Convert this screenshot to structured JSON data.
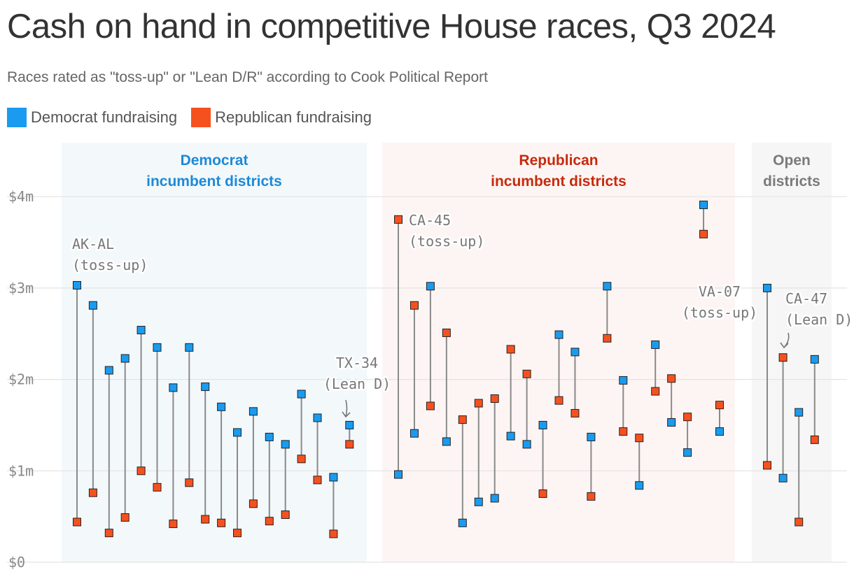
{
  "title": "Cash on hand in competitive House races, Q3 2024",
  "subtitle": "Races rated as \"toss-up\" or \"Lean D/R\" according to Cook Political Report",
  "legend": [
    {
      "label": "Democrat fundraising",
      "color": "#1a9bf0"
    },
    {
      "label": "Republican fundraising",
      "color": "#f5511f"
    }
  ],
  "colors": {
    "dem": "#1a9bf0",
    "rep": "#f5511f",
    "dem_panel_bg": "#f3f8fb",
    "rep_panel_bg": "#fdf5f3",
    "open_panel_bg": "#f6f6f6",
    "dem_label": "#1c8ad8",
    "rep_label": "#c62a0d",
    "open_label": "#7a7a7a",
    "connector": "#8a8a8a",
    "grid": "#e3e3e3"
  },
  "chart_data": {
    "type": "scatter",
    "title": "Cash on hand in competitive House races, Q3 2024",
    "subtitle": "Races rated as \"toss-up\" or \"Lean D/R\" according to Cook Political Report",
    "ylim": [
      0,
      4.2
    ],
    "yticks": [
      {
        "value": 0,
        "label": "$0"
      },
      {
        "value": 1,
        "label": "$1m"
      },
      {
        "value": 2,
        "label": "$2m"
      },
      {
        "value": 3,
        "label": "$3m"
      },
      {
        "value": 4,
        "label": "$4m"
      }
    ],
    "grid": true,
    "legend_position": "top-left",
    "series": [
      {
        "name": "Democrat fundraising",
        "color": "#1a9bf0"
      },
      {
        "name": "Republican fundraising",
        "color": "#f5511f"
      }
    ],
    "panels": [
      {
        "label_lines": [
          "Democrat",
          "incumbent districts"
        ],
        "races": [
          {
            "dem": 3.03,
            "rep": 0.44
          },
          {
            "dem": 2.81,
            "rep": 0.76
          },
          {
            "dem": 2.1,
            "rep": 0.32
          },
          {
            "dem": 2.23,
            "rep": 0.49
          },
          {
            "dem": 2.54,
            "rep": 1.0
          },
          {
            "dem": 2.35,
            "rep": 0.82
          },
          {
            "dem": 1.91,
            "rep": 0.42
          },
          {
            "dem": 2.35,
            "rep": 0.87
          },
          {
            "dem": 1.92,
            "rep": 0.47
          },
          {
            "dem": 1.7,
            "rep": 0.43
          },
          {
            "dem": 1.42,
            "rep": 0.32
          },
          {
            "dem": 1.65,
            "rep": 0.64
          },
          {
            "dem": 1.37,
            "rep": 0.45
          },
          {
            "dem": 1.29,
            "rep": 0.52
          },
          {
            "dem": 1.84,
            "rep": 1.13
          },
          {
            "dem": 1.58,
            "rep": 0.9
          },
          {
            "dem": 0.93,
            "rep": 0.31
          },
          {
            "dem": 1.5,
            "rep": 1.29
          }
        ]
      },
      {
        "label_lines": [
          "Republican",
          "incumbent districts"
        ],
        "races": [
          {
            "dem": 0.96,
            "rep": 3.75
          },
          {
            "dem": 1.41,
            "rep": 2.81
          },
          {
            "dem": 3.02,
            "rep": 1.71
          },
          {
            "dem": 1.32,
            "rep": 2.51
          },
          {
            "dem": 0.43,
            "rep": 1.56
          },
          {
            "dem": 0.66,
            "rep": 1.74
          },
          {
            "dem": 0.7,
            "rep": 1.79
          },
          {
            "dem": 1.38,
            "rep": 2.33
          },
          {
            "dem": 1.29,
            "rep": 2.06
          },
          {
            "dem": 1.5,
            "rep": 0.75
          },
          {
            "dem": 2.49,
            "rep": 1.77
          },
          {
            "dem": 2.3,
            "rep": 1.63
          },
          {
            "dem": 1.37,
            "rep": 0.72
          },
          {
            "dem": 3.02,
            "rep": 2.45
          },
          {
            "dem": 1.99,
            "rep": 1.43
          },
          {
            "dem": 0.84,
            "rep": 1.36
          },
          {
            "dem": 2.38,
            "rep": 1.87
          },
          {
            "dem": 1.53,
            "rep": 2.01
          },
          {
            "dem": 1.2,
            "rep": 1.59
          },
          {
            "dem": 3.91,
            "rep": 3.59
          },
          {
            "dem": 1.43,
            "rep": 1.72
          }
        ]
      },
      {
        "label_lines": [
          "Open",
          "districts"
        ],
        "races": [
          {
            "dem": 3.0,
            "rep": 1.06
          },
          {
            "dem": 0.92,
            "rep": 2.24
          },
          {
            "dem": 1.64,
            "rep": 0.44
          },
          {
            "dem": 2.22,
            "rep": 1.34
          }
        ]
      }
    ],
    "annotations": [
      {
        "lines": [
          "AK-AL",
          "(toss-up)"
        ],
        "panel": 0,
        "race": 0
      },
      {
        "lines": [
          "TX-34",
          "(Lean D)"
        ],
        "panel": 0,
        "race": 17
      },
      {
        "lines": [
          "CA-45",
          "(toss-up)"
        ],
        "panel": 1,
        "race": 0
      },
      {
        "lines": [
          "VA-07",
          "(toss-up)"
        ],
        "panel": 2,
        "race": 0
      },
      {
        "lines": [
          "CA-47",
          "(Lean D)"
        ],
        "panel": 2,
        "race": 1
      }
    ]
  }
}
